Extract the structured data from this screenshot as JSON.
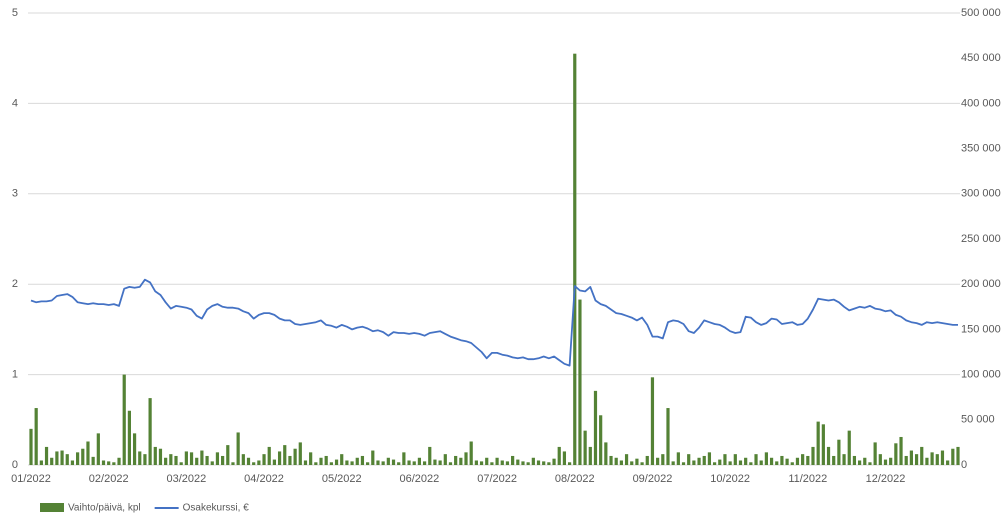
{
  "chart_data": {
    "type": "bar-line",
    "categories": [
      "01/2022",
      null,
      null,
      null,
      null,
      null,
      null,
      null,
      null,
      null,
      null,
      null,
      null,
      null,
      null,
      "02/2022",
      null,
      null,
      null,
      null,
      null,
      null,
      null,
      null,
      null,
      null,
      null,
      null,
      null,
      null,
      "03/2022",
      null,
      null,
      null,
      null,
      null,
      null,
      null,
      null,
      null,
      null,
      null,
      null,
      null,
      null,
      "04/2022",
      null,
      null,
      null,
      null,
      null,
      null,
      null,
      null,
      null,
      null,
      null,
      null,
      null,
      null,
      "05/2022",
      null,
      null,
      null,
      null,
      null,
      null,
      null,
      null,
      null,
      null,
      null,
      null,
      null,
      null,
      "06/2022",
      null,
      null,
      null,
      null,
      null,
      null,
      null,
      null,
      null,
      null,
      null,
      null,
      null,
      null,
      "07/2022",
      null,
      null,
      null,
      null,
      null,
      null,
      null,
      null,
      null,
      null,
      null,
      null,
      null,
      null,
      "08/2022",
      null,
      null,
      null,
      null,
      null,
      null,
      null,
      null,
      null,
      null,
      null,
      null,
      null,
      null,
      "09/2022",
      null,
      null,
      null,
      null,
      null,
      null,
      null,
      null,
      null,
      null,
      null,
      null,
      null,
      null,
      "10/2022",
      null,
      null,
      null,
      null,
      null,
      null,
      null,
      null,
      null,
      null,
      null,
      null,
      null,
      null,
      "11/2022",
      null,
      null,
      null,
      null,
      null,
      null,
      null,
      null,
      null,
      null,
      null,
      null,
      null,
      null,
      "12/2022",
      null,
      null,
      null,
      null,
      null,
      null,
      null,
      null,
      null,
      null,
      null,
      null,
      null,
      null
    ],
    "series": [
      {
        "name": "Vaihto/päivä, kpl",
        "type": "bar",
        "axis": "y2",
        "color": "#548235",
        "values": [
          40000,
          63000,
          5000,
          20000,
          8000,
          15000,
          16000,
          12000,
          5000,
          14000,
          18000,
          26000,
          9000,
          35000,
          5000,
          4000,
          3000,
          8000,
          100000,
          60000,
          35000,
          15000,
          12000,
          74000,
          20000,
          18000,
          8000,
          12000,
          10000,
          3000,
          15000,
          14000,
          8000,
          16000,
          10000,
          4000,
          14000,
          10000,
          22000,
          3000,
          36000,
          12000,
          8000,
          3000,
          5000,
          12000,
          20000,
          6000,
          15000,
          22000,
          10000,
          18000,
          25000,
          5000,
          14000,
          3000,
          8000,
          10000,
          3000,
          6000,
          12000,
          5000,
          4000,
          8000,
          10000,
          3000,
          16000,
          5000,
          4000,
          8000,
          6000,
          3000,
          14000,
          5000,
          4000,
          8000,
          4000,
          20000,
          6000,
          5000,
          12000,
          3000,
          10000,
          8000,
          14000,
          26000,
          5000,
          4000,
          8000,
          3000,
          8000,
          5000,
          4000,
          10000,
          6000,
          4000,
          3000,
          8000,
          5000,
          4000,
          3000,
          7000,
          20000,
          15000,
          3000,
          455000,
          183000,
          38000,
          20000,
          82000,
          55000,
          25000,
          10000,
          8000,
          5000,
          12000,
          4000,
          7000,
          3000,
          10000,
          97000,
          8000,
          12000,
          63000,
          4000,
          14000,
          3000,
          12000,
          5000,
          8000,
          10000,
          14000,
          3000,
          6000,
          12000,
          4000,
          12000,
          5000,
          8000,
          3000,
          12000,
          5000,
          14000,
          8000,
          4000,
          10000,
          7000,
          3000,
          8000,
          12000,
          10000,
          20000,
          48000,
          45000,
          20000,
          10000,
          28000,
          12000,
          38000,
          10000,
          5000,
          8000,
          3000,
          25000,
          12000,
          6000,
          8000,
          24000,
          31000,
          10000,
          16000,
          12000,
          20000,
          8000,
          14000,
          12000,
          16000,
          5000,
          18000,
          20000
        ]
      },
      {
        "name": "Osakekurssi, €",
        "type": "line",
        "axis": "y",
        "color": "#4472c4",
        "values": [
          1.82,
          1.8,
          1.81,
          1.81,
          1.82,
          1.87,
          1.88,
          1.89,
          1.86,
          1.8,
          1.79,
          1.78,
          1.79,
          1.78,
          1.78,
          1.77,
          1.78,
          1.76,
          1.95,
          1.97,
          1.96,
          1.97,
          2.05,
          2.02,
          1.92,
          1.88,
          1.8,
          1.73,
          1.76,
          1.75,
          1.74,
          1.72,
          1.65,
          1.62,
          1.72,
          1.76,
          1.78,
          1.75,
          1.74,
          1.74,
          1.73,
          1.7,
          1.68,
          1.62,
          1.66,
          1.68,
          1.68,
          1.66,
          1.62,
          1.6,
          1.6,
          1.56,
          1.55,
          1.56,
          1.57,
          1.58,
          1.6,
          1.55,
          1.54,
          1.52,
          1.55,
          1.53,
          1.5,
          1.52,
          1.53,
          1.51,
          1.48,
          1.49,
          1.47,
          1.43,
          1.47,
          1.46,
          1.46,
          1.45,
          1.46,
          1.45,
          1.43,
          1.46,
          1.47,
          1.48,
          1.45,
          1.42,
          1.4,
          1.38,
          1.37,
          1.35,
          1.3,
          1.25,
          1.18,
          1.24,
          1.24,
          1.22,
          1.21,
          1.19,
          1.18,
          1.19,
          1.17,
          1.17,
          1.18,
          1.2,
          1.18,
          1.2,
          1.16,
          1.12,
          1.1,
          1.98,
          1.93,
          1.92,
          1.97,
          1.82,
          1.78,
          1.76,
          1.72,
          1.68,
          1.67,
          1.65,
          1.63,
          1.6,
          1.63,
          1.55,
          1.42,
          1.42,
          1.4,
          1.58,
          1.6,
          1.59,
          1.56,
          1.48,
          1.46,
          1.52,
          1.6,
          1.58,
          1.56,
          1.55,
          1.52,
          1.48,
          1.46,
          1.47,
          1.64,
          1.63,
          1.58,
          1.55,
          1.57,
          1.62,
          1.61,
          1.56,
          1.57,
          1.58,
          1.55,
          1.56,
          1.62,
          1.72,
          1.84,
          1.83,
          1.82,
          1.83,
          1.8,
          1.75,
          1.71,
          1.73,
          1.75,
          1.74,
          1.76,
          1.73,
          1.72,
          1.7,
          1.71,
          1.66,
          1.64,
          1.6,
          1.58,
          1.57,
          1.55,
          1.58,
          1.57,
          1.58,
          1.57,
          1.56,
          1.55,
          1.55
        ]
      }
    ],
    "ylim": [
      0,
      5
    ],
    "yticks": [
      0,
      1,
      2,
      3,
      4,
      5
    ],
    "y2lim": [
      0,
      500000
    ],
    "y2ticks": [
      {
        "value": 0,
        "label": "0"
      },
      {
        "value": 50000,
        "label": "50 000"
      },
      {
        "value": 100000,
        "label": "100 000"
      },
      {
        "value": 150000,
        "label": "150 000"
      },
      {
        "value": 200000,
        "label": "200 000"
      },
      {
        "value": 250000,
        "label": "250 000"
      },
      {
        "value": 300000,
        "label": "300 000"
      },
      {
        "value": 350000,
        "label": "350 000"
      },
      {
        "value": 400000,
        "label": "400 000"
      },
      {
        "value": 450000,
        "label": "450 000"
      },
      {
        "value": 500000,
        "label": "500 000"
      }
    ],
    "grid": true,
    "legend": "bottom-left"
  }
}
